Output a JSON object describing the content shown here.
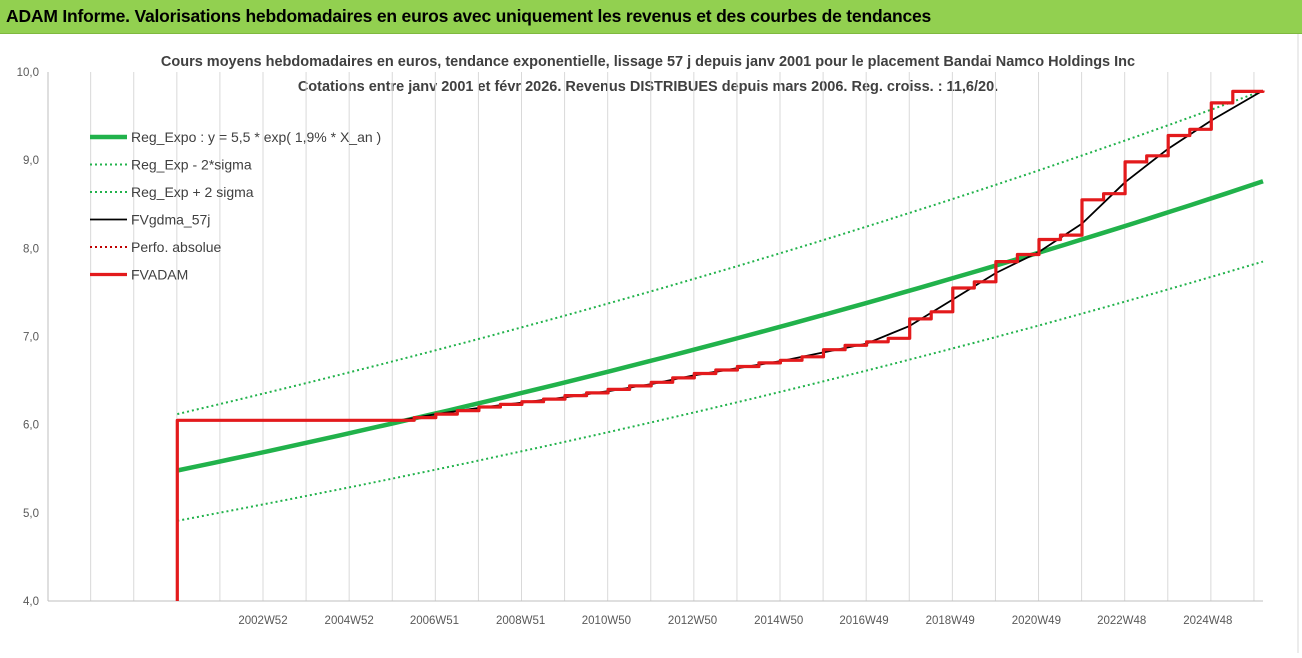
{
  "header": {
    "title": "ADAM Informe. Valorisations hebdomadaires en euros avec uniquement les revenus et des courbes de tendances"
  },
  "chart_data": {
    "type": "line",
    "title_lines": [
      "Cours moyens hebdomadaires en euros, tendance exponentielle, lissage 57 j depuis janv 2001 pour le placement Bandai Namco Holdings Inc",
      "Cotations entre janv 2001 et févr 2026. Revenus DISTRIBUES depuis mars 2006. Reg. croiss. : 11,6/20."
    ],
    "ylim": [
      4.0,
      10.0
    ],
    "y_ticks": [
      "4,0",
      "5,0",
      "6,0",
      "7,0",
      "8,0",
      "9,0",
      "10,0"
    ],
    "x_ticks": [
      "2002W52",
      "2004W52",
      "2006W51",
      "2008W51",
      "2010W50",
      "2012W50",
      "2014W50",
      "2016W49",
      "2018W49",
      "2020W49",
      "2022W48",
      "2024W48"
    ],
    "x_tick_years": [
      2002.99,
      2004.99,
      2006.97,
      2008.97,
      2010.96,
      2012.96,
      2014.96,
      2016.94,
      2018.94,
      2020.94,
      2022.92,
      2024.92
    ],
    "xlim": [
      1998.0,
      2026.2
    ],
    "grid": "vertical",
    "legend_position": "top-left",
    "series": [
      {
        "name": "Reg_Expo : y = 5,5 * exp( 1,9% *  X_an )",
        "color": "#21b24b",
        "style": "solid-thick",
        "x": [
          2001.0,
          2026.2
        ],
        "y": [
          5.48,
          8.76
        ]
      },
      {
        "name": "Reg_Exp - 2*sigma",
        "color": "#21b24b",
        "style": "dotted",
        "x": [
          2001.0,
          2026.2
        ],
        "y": [
          4.91,
          7.85
        ]
      },
      {
        "name": "Reg_Exp + 2 sigma",
        "color": "#21b24b",
        "style": "dotted",
        "x": [
          2001.0,
          2026.2
        ],
        "y": [
          6.12,
          9.79
        ]
      },
      {
        "name": "FVgdma_57j",
        "color": "#000000",
        "style": "solid-thin",
        "x": [
          2006.2,
          2007.0,
          2008.0,
          2009.0,
          2010.0,
          2011.0,
          2012.0,
          2013.0,
          2014.0,
          2015.0,
          2016.0,
          2017.0,
          2018.0,
          2019.0,
          2020.0,
          2021.0,
          2022.0,
          2023.0,
          2024.0,
          2025.0,
          2026.2
        ],
        "y": [
          6.05,
          6.12,
          6.19,
          6.25,
          6.31,
          6.38,
          6.46,
          6.56,
          6.64,
          6.72,
          6.82,
          6.92,
          7.12,
          7.42,
          7.72,
          7.96,
          8.28,
          8.75,
          9.13,
          9.45,
          9.79
        ]
      },
      {
        "name": "Perfo. absolue",
        "color": "#c00000",
        "style": "dotted",
        "x": [],
        "y": []
      },
      {
        "name": "FVADAM",
        "color": "#e31a1c",
        "style": "solid-thick-step",
        "x": [
          2001.0,
          2001.0,
          2006.2,
          2006.5,
          2007.0,
          2007.5,
          2008.0,
          2008.5,
          2009.0,
          2009.5,
          2010.0,
          2010.5,
          2011.0,
          2011.5,
          2012.0,
          2012.5,
          2013.0,
          2013.5,
          2014.0,
          2014.5,
          2015.0,
          2015.5,
          2016.0,
          2016.5,
          2017.0,
          2017.5,
          2018.0,
          2018.5,
          2019.0,
          2019.5,
          2020.0,
          2020.5,
          2021.0,
          2021.5,
          2022.0,
          2022.5,
          2023.0,
          2023.5,
          2024.0,
          2024.5,
          2025.0,
          2025.5,
          2026.2
        ],
        "y": [
          4.0,
          6.05,
          6.05,
          6.08,
          6.12,
          6.16,
          6.2,
          6.23,
          6.26,
          6.29,
          6.33,
          6.36,
          6.4,
          6.44,
          6.48,
          6.53,
          6.58,
          6.62,
          6.66,
          6.7,
          6.73,
          6.77,
          6.85,
          6.9,
          6.94,
          6.98,
          7.2,
          7.28,
          7.55,
          7.62,
          7.85,
          7.93,
          8.1,
          8.15,
          8.55,
          8.62,
          8.98,
          9.05,
          9.28,
          9.35,
          9.65,
          9.78,
          9.79
        ]
      }
    ]
  }
}
